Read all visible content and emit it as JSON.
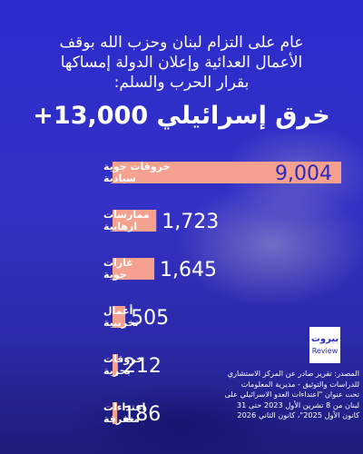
{
  "headline": {
    "line1": "عام على التزام لبنان وحزب الله بوقف",
    "line2": "الأعمال العدائية وإعلان الدولة إمساكها",
    "line3": "بقرار الحرب والسلم:",
    "title_number": "+13,000",
    "title_text": "خرق إسرائيلي"
  },
  "chart_data": {
    "type": "bar",
    "orientation": "horizontal",
    "title": "",
    "xlabel": "",
    "ylabel": "",
    "categories": [
      [
        "خروقات جوية",
        "سيادية"
      ],
      [
        "ممارسات",
        "ارهابية"
      ],
      [
        "غارات",
        "جوية"
      ],
      [
        "أعمال",
        "تخريبية"
      ],
      [
        "خروقات",
        "بحرية"
      ],
      [
        "اعتداءات",
        "متفرقة"
      ]
    ],
    "values": [
      9004,
      1723,
      1645,
      505,
      212,
      186
    ],
    "value_labels": [
      "9,004",
      "1,723",
      "1,645",
      "505",
      "212",
      "186"
    ],
    "xlim": [
      0,
      9004
    ],
    "grid": false,
    "legend": "none",
    "colors": {
      "bar": "#f4a18f",
      "label": "#ffffff",
      "inside_label": "#2a2ac0"
    }
  },
  "logo": {
    "line1": "بيروت",
    "line2": "Review"
  },
  "source": {
    "line1": "المصدر: تقرير صادر عن المركز الاستشاري",
    "line2": "للدراسات والتوثيق - مديرية المعلومات",
    "line3": "تحت عنوان \"اعتداءات العدو الاسرائيلي على",
    "line4": "لبنان من 8 تشرين الأول 2023 حتى 31",
    "line5": "كانون الأول 2025\"، كانون الثاني 2026"
  },
  "colors": {
    "background": "#2c2bcc",
    "accent": "#f4a18f",
    "text": "#ffffff"
  }
}
